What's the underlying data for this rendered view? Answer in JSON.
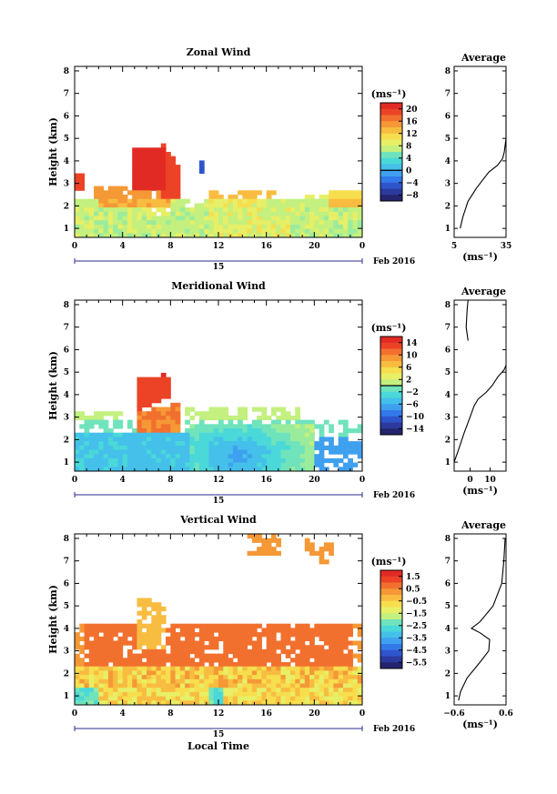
{
  "chart_data": [
    {
      "type": "heatmap",
      "title": "Zonal Wind",
      "ylabel": "Height (km)",
      "xlabel": "",
      "x_ticks": [
        "0",
        "4",
        "8",
        "12",
        "16",
        "20",
        "0"
      ],
      "y_ticks": [
        "1",
        "2",
        "3",
        "4",
        "5",
        "6",
        "7",
        "8"
      ],
      "xlim": [
        0,
        24
      ],
      "ylim": [
        0.6,
        8.2
      ],
      "date_day": "15",
      "date_label": "Feb 2016",
      "colorbar": {
        "unit": "(ms⁻¹)",
        "range": [
          -10,
          22
        ],
        "ticks": [
          "20",
          "16",
          "12",
          "8",
          "4",
          "0",
          "−4",
          "−8"
        ],
        "tick_values": [
          20,
          16,
          12,
          8,
          4,
          0,
          -4,
          -8
        ],
        "zero_line": 0
      },
      "average": {
        "title": "Average",
        "x_ticks": [
          "5",
          "35"
        ],
        "xlim": [
          5,
          35
        ],
        "unit": "(ms⁻¹)",
        "profile": [
          [
            8.5,
            1.0
          ],
          [
            10,
            1.5
          ],
          [
            13,
            2.2
          ],
          [
            18,
            2.8
          ],
          [
            21,
            3.1
          ],
          [
            25,
            3.5
          ],
          [
            30,
            3.8
          ],
          [
            33,
            4.1
          ],
          [
            34,
            4.4
          ],
          [
            35,
            5.0
          ],
          [
            35,
            6.0
          ]
        ]
      }
    },
    {
      "type": "heatmap",
      "title": "Meridional Wind",
      "ylabel": "Height (km)",
      "xlabel": "",
      "x_ticks": [
        "0",
        "4",
        "8",
        "12",
        "16",
        "20",
        "0"
      ],
      "y_ticks": [
        "1",
        "2",
        "3",
        "4",
        "5",
        "6",
        "7",
        "8"
      ],
      "xlim": [
        0,
        24
      ],
      "ylim": [
        0.6,
        8.2
      ],
      "date_day": "15",
      "date_label": "Feb 2016",
      "colorbar": {
        "unit": "(ms⁻¹)",
        "range": [
          -16,
          16
        ],
        "ticks": [
          "14",
          "10",
          "6",
          "2",
          "−2",
          "−6",
          "−10",
          "−14"
        ],
        "tick_values": [
          14,
          10,
          6,
          2,
          -2,
          -6,
          -10,
          -14
        ],
        "zero_line": 0
      },
      "average": {
        "title": "Average",
        "x_ticks": [
          "0",
          "10"
        ],
        "xlim": [
          -8,
          18
        ],
        "unit": "(ms⁻¹)",
        "profile": [
          [
            -8,
            1.0
          ],
          [
            -6,
            1.5
          ],
          [
            -3,
            2.3
          ],
          [
            0,
            3.0
          ],
          [
            2,
            3.5
          ],
          [
            4,
            3.8
          ],
          [
            8,
            4.1
          ],
          [
            11,
            4.4
          ],
          [
            14,
            4.8
          ],
          [
            17,
            5.1
          ],
          [
            18,
            5.3
          ]
        ],
        "profile_top": [
          [
            -1,
            6.4
          ],
          [
            -2,
            7.0
          ],
          [
            -1.5,
            7.8
          ],
          [
            -1,
            8.2
          ]
        ]
      }
    },
    {
      "type": "heatmap",
      "title": "Vertical Wind",
      "ylabel": "Height (km)",
      "xlabel": "Local Time",
      "x_ticks": [
        "0",
        "4",
        "8",
        "12",
        "16",
        "20",
        "0"
      ],
      "y_ticks": [
        "1",
        "2",
        "3",
        "4",
        "5",
        "6",
        "7",
        "8"
      ],
      "xlim": [
        0,
        24
      ],
      "ylim": [
        0.6,
        8.2
      ],
      "date_day": "15",
      "date_label": "Feb 2016",
      "colorbar": {
        "unit": "(ms⁻¹)",
        "range": [
          -6,
          2
        ],
        "ticks": [
          "1.5",
          "0.5",
          "−0.5",
          "−1.5",
          "−2.5",
          "−3.5",
          "−4.5",
          "−5.5"
        ],
        "tick_values": [
          1.5,
          0.5,
          -0.5,
          -1.5,
          -2.5,
          -3.5,
          -4.5,
          -5.5
        ],
        "zero_line": null
      },
      "average": {
        "title": "Average",
        "x_ticks": [
          "−0.6",
          "0.6"
        ],
        "xlim": [
          -0.6,
          0.6
        ],
        "unit": "(ms⁻¹)",
        "profile": [
          [
            -0.5,
            0.8
          ],
          [
            -0.45,
            1.2
          ],
          [
            -0.3,
            1.8
          ],
          [
            0.0,
            2.5
          ],
          [
            0.2,
            3.0
          ],
          [
            0.22,
            3.5
          ],
          [
            0.0,
            3.8
          ],
          [
            -0.2,
            4.0
          ],
          [
            0.0,
            4.3
          ],
          [
            0.3,
            5.0
          ],
          [
            0.4,
            5.5
          ],
          [
            0.5,
            6.0
          ],
          [
            0.55,
            7.0
          ],
          [
            0.58,
            8.0
          ]
        ]
      }
    }
  ]
}
